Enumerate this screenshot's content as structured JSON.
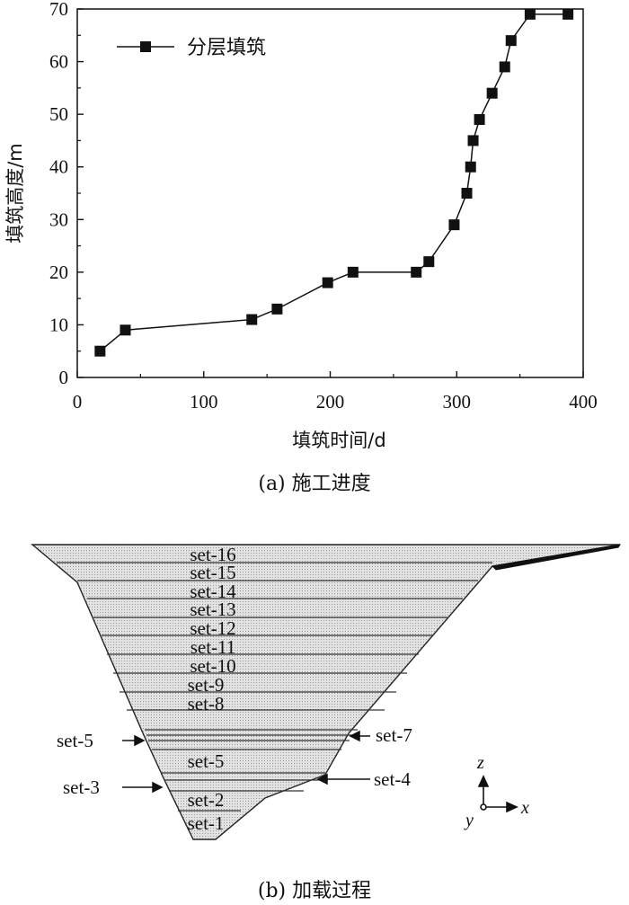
{
  "chart_data": {
    "type": "line",
    "title": "",
    "xlabel": "填筑时间/d",
    "ylabel": "填筑高度/m",
    "xlim": [
      0,
      400
    ],
    "ylim": [
      0,
      70
    ],
    "xticks": [
      0,
      100,
      200,
      300,
      400
    ],
    "yticks": [
      0,
      10,
      20,
      30,
      40,
      50,
      60,
      70
    ],
    "grid": false,
    "legend_position": "top-left",
    "series": [
      {
        "name": "分层填筑",
        "marker": "square",
        "x": [
          18,
          38,
          138,
          158,
          198,
          218,
          268,
          278,
          298,
          308,
          311,
          313,
          318,
          328,
          338,
          343,
          358,
          388
        ],
        "y": [
          5,
          9,
          11,
          13,
          18,
          20,
          20,
          22,
          29,
          35,
          40,
          45,
          49,
          54,
          59,
          64,
          69,
          69
        ]
      }
    ]
  },
  "caption_a": "(a) 施工进度",
  "caption_b": "(b) 加载过程",
  "diagram": {
    "layers_inside": [
      "set-16",
      "set-15",
      "set-14",
      "set-13",
      "set-12",
      "set-11",
      "set-10",
      "set-9",
      "set-8",
      "set-5",
      "set-2",
      "set-1"
    ],
    "callouts": {
      "left_upper": "set-5",
      "left_lower": "set-3",
      "right_upper": "set-7",
      "right_lower": "set-4"
    },
    "axes": {
      "z": "z",
      "x": "x",
      "y": "y"
    }
  }
}
